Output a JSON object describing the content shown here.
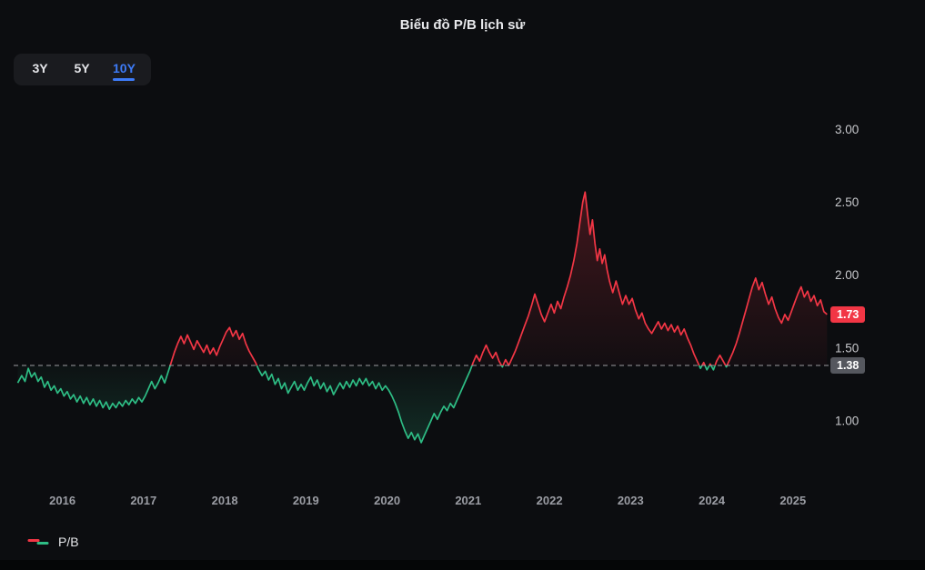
{
  "header": {
    "title": "Biểu đồ P/B lịch sử"
  },
  "range_selector": {
    "selected": "10Y",
    "options": [
      {
        "id": "3Y",
        "label": "3Y"
      },
      {
        "id": "5Y",
        "label": "5Y"
      },
      {
        "id": "10Y",
        "label": "10Y"
      }
    ]
  },
  "legend": {
    "label": "P/B"
  },
  "chart_data": {
    "type": "line",
    "title": "Biểu đồ P/B lịch sử",
    "xlabel": "",
    "ylabel": "P/B",
    "grid": false,
    "legend_position": "bottom-left",
    "x_range": [
      2015.4,
      2025.45
    ],
    "y_range": [
      0.55,
      3.14
    ],
    "x_ticks": [
      {
        "v": 2016,
        "label": "2016"
      },
      {
        "v": 2017,
        "label": "2017"
      },
      {
        "v": 2018,
        "label": "2018"
      },
      {
        "v": 2019,
        "label": "2019"
      },
      {
        "v": 2020,
        "label": "2020"
      },
      {
        "v": 2021,
        "label": "2021"
      },
      {
        "v": 2022,
        "label": "2022"
      },
      {
        "v": 2023,
        "label": "2023"
      },
      {
        "v": 2024,
        "label": "2024"
      },
      {
        "v": 2025,
        "label": "2025"
      }
    ],
    "y_ticks": [
      {
        "v": 1.0,
        "label": "1.00"
      },
      {
        "v": 1.5,
        "label": "1.50"
      },
      {
        "v": 2.0,
        "label": "2.00"
      },
      {
        "v": 2.5,
        "label": "2.50"
      },
      {
        "v": 3.0,
        "label": "3.00"
      }
    ],
    "threshold": {
      "value": 1.38,
      "label": "1.38"
    },
    "current": {
      "value": 1.73,
      "label": "1.73"
    },
    "colors": {
      "above": "#f23645",
      "below": "#2ebd85",
      "accent_blue": "#3d7bf7",
      "threshold_line": "#9b9ca1",
      "current_badge_bg": "#f23645",
      "threshold_badge_bg": "#55575e",
      "y_tick_text": "#c8c9cd",
      "x_tick_text": "#9a9ca3"
    },
    "series": [
      {
        "name": "P/B",
        "points": [
          [
            2015.45,
            1.26
          ],
          [
            2015.5,
            1.31
          ],
          [
            2015.54,
            1.27
          ],
          [
            2015.58,
            1.36
          ],
          [
            2015.62,
            1.3
          ],
          [
            2015.66,
            1.33
          ],
          [
            2015.7,
            1.27
          ],
          [
            2015.74,
            1.3
          ],
          [
            2015.78,
            1.23
          ],
          [
            2015.82,
            1.27
          ],
          [
            2015.86,
            1.21
          ],
          [
            2015.9,
            1.24
          ],
          [
            2015.94,
            1.19
          ],
          [
            2015.98,
            1.22
          ],
          [
            2016.02,
            1.17
          ],
          [
            2016.06,
            1.2
          ],
          [
            2016.1,
            1.15
          ],
          [
            2016.14,
            1.18
          ],
          [
            2016.18,
            1.13
          ],
          [
            2016.22,
            1.17
          ],
          [
            2016.26,
            1.12
          ],
          [
            2016.3,
            1.16
          ],
          [
            2016.34,
            1.11
          ],
          [
            2016.38,
            1.15
          ],
          [
            2016.42,
            1.1
          ],
          [
            2016.46,
            1.14
          ],
          [
            2016.5,
            1.09
          ],
          [
            2016.54,
            1.13
          ],
          [
            2016.58,
            1.08
          ],
          [
            2016.62,
            1.12
          ],
          [
            2016.66,
            1.09
          ],
          [
            2016.7,
            1.13
          ],
          [
            2016.74,
            1.1
          ],
          [
            2016.78,
            1.14
          ],
          [
            2016.82,
            1.11
          ],
          [
            2016.86,
            1.15
          ],
          [
            2016.9,
            1.12
          ],
          [
            2016.94,
            1.16
          ],
          [
            2016.98,
            1.13
          ],
          [
            2017.02,
            1.17
          ],
          [
            2017.06,
            1.22
          ],
          [
            2017.1,
            1.27
          ],
          [
            2017.14,
            1.22
          ],
          [
            2017.18,
            1.26
          ],
          [
            2017.22,
            1.31
          ],
          [
            2017.26,
            1.26
          ],
          [
            2017.3,
            1.33
          ],
          [
            2017.34,
            1.4
          ],
          [
            2017.38,
            1.47
          ],
          [
            2017.42,
            1.53
          ],
          [
            2017.46,
            1.58
          ],
          [
            2017.5,
            1.53
          ],
          [
            2017.54,
            1.59
          ],
          [
            2017.58,
            1.54
          ],
          [
            2017.62,
            1.49
          ],
          [
            2017.66,
            1.55
          ],
          [
            2017.7,
            1.51
          ],
          [
            2017.74,
            1.47
          ],
          [
            2017.78,
            1.52
          ],
          [
            2017.82,
            1.46
          ],
          [
            2017.86,
            1.5
          ],
          [
            2017.9,
            1.45
          ],
          [
            2017.94,
            1.51
          ],
          [
            2017.98,
            1.56
          ],
          [
            2018.02,
            1.61
          ],
          [
            2018.06,
            1.64
          ],
          [
            2018.1,
            1.58
          ],
          [
            2018.14,
            1.62
          ],
          [
            2018.18,
            1.56
          ],
          [
            2018.22,
            1.6
          ],
          [
            2018.26,
            1.53
          ],
          [
            2018.3,
            1.48
          ],
          [
            2018.34,
            1.44
          ],
          [
            2018.38,
            1.4
          ],
          [
            2018.42,
            1.35
          ],
          [
            2018.46,
            1.31
          ],
          [
            2018.5,
            1.34
          ],
          [
            2018.54,
            1.28
          ],
          [
            2018.58,
            1.32
          ],
          [
            2018.62,
            1.25
          ],
          [
            2018.66,
            1.29
          ],
          [
            2018.7,
            1.22
          ],
          [
            2018.74,
            1.26
          ],
          [
            2018.78,
            1.19
          ],
          [
            2018.82,
            1.23
          ],
          [
            2018.86,
            1.27
          ],
          [
            2018.9,
            1.21
          ],
          [
            2018.94,
            1.25
          ],
          [
            2018.98,
            1.21
          ],
          [
            2019.02,
            1.26
          ],
          [
            2019.06,
            1.3
          ],
          [
            2019.1,
            1.24
          ],
          [
            2019.14,
            1.28
          ],
          [
            2019.18,
            1.22
          ],
          [
            2019.22,
            1.26
          ],
          [
            2019.26,
            1.2
          ],
          [
            2019.3,
            1.24
          ],
          [
            2019.34,
            1.18
          ],
          [
            2019.38,
            1.22
          ],
          [
            2019.42,
            1.26
          ],
          [
            2019.46,
            1.22
          ],
          [
            2019.5,
            1.27
          ],
          [
            2019.54,
            1.23
          ],
          [
            2019.58,
            1.28
          ],
          [
            2019.62,
            1.24
          ],
          [
            2019.66,
            1.29
          ],
          [
            2019.7,
            1.25
          ],
          [
            2019.74,
            1.29
          ],
          [
            2019.78,
            1.24
          ],
          [
            2019.82,
            1.27
          ],
          [
            2019.86,
            1.22
          ],
          [
            2019.9,
            1.26
          ],
          [
            2019.94,
            1.21
          ],
          [
            2019.98,
            1.24
          ],
          [
            2020.02,
            1.21
          ],
          [
            2020.06,
            1.17
          ],
          [
            2020.1,
            1.12
          ],
          [
            2020.14,
            1.06
          ],
          [
            2020.18,
            0.99
          ],
          [
            2020.22,
            0.93
          ],
          [
            2020.26,
            0.88
          ],
          [
            2020.3,
            0.92
          ],
          [
            2020.34,
            0.87
          ],
          [
            2020.38,
            0.91
          ],
          [
            2020.42,
            0.85
          ],
          [
            2020.46,
            0.9
          ],
          [
            2020.5,
            0.95
          ],
          [
            2020.54,
            1.0
          ],
          [
            2020.58,
            1.05
          ],
          [
            2020.62,
            1.01
          ],
          [
            2020.66,
            1.06
          ],
          [
            2020.7,
            1.1
          ],
          [
            2020.74,
            1.07
          ],
          [
            2020.78,
            1.12
          ],
          [
            2020.82,
            1.09
          ],
          [
            2020.86,
            1.14
          ],
          [
            2020.9,
            1.19
          ],
          [
            2020.94,
            1.24
          ],
          [
            2020.98,
            1.29
          ],
          [
            2021.02,
            1.34
          ],
          [
            2021.06,
            1.4
          ],
          [
            2021.1,
            1.45
          ],
          [
            2021.14,
            1.41
          ],
          [
            2021.18,
            1.47
          ],
          [
            2021.22,
            1.52
          ],
          [
            2021.26,
            1.47
          ],
          [
            2021.3,
            1.43
          ],
          [
            2021.34,
            1.47
          ],
          [
            2021.38,
            1.41
          ],
          [
            2021.42,
            1.37
          ],
          [
            2021.46,
            1.42
          ],
          [
            2021.5,
            1.38
          ],
          [
            2021.54,
            1.43
          ],
          [
            2021.58,
            1.48
          ],
          [
            2021.62,
            1.54
          ],
          [
            2021.66,
            1.6
          ],
          [
            2021.7,
            1.66
          ],
          [
            2021.74,
            1.72
          ],
          [
            2021.78,
            1.79
          ],
          [
            2021.82,
            1.87
          ],
          [
            2021.86,
            1.8
          ],
          [
            2021.9,
            1.73
          ],
          [
            2021.94,
            1.68
          ],
          [
            2021.98,
            1.74
          ],
          [
            2022.02,
            1.8
          ],
          [
            2022.06,
            1.74
          ],
          [
            2022.1,
            1.82
          ],
          [
            2022.14,
            1.77
          ],
          [
            2022.18,
            1.85
          ],
          [
            2022.22,
            1.92
          ],
          [
            2022.26,
            2.0
          ],
          [
            2022.3,
            2.1
          ],
          [
            2022.34,
            2.22
          ],
          [
            2022.38,
            2.38
          ],
          [
            2022.41,
            2.5
          ],
          [
            2022.44,
            2.57
          ],
          [
            2022.47,
            2.42
          ],
          [
            2022.5,
            2.28
          ],
          [
            2022.53,
            2.38
          ],
          [
            2022.56,
            2.22
          ],
          [
            2022.59,
            2.1
          ],
          [
            2022.62,
            2.18
          ],
          [
            2022.65,
            2.08
          ],
          [
            2022.68,
            2.14
          ],
          [
            2022.71,
            2.04
          ],
          [
            2022.74,
            1.96
          ],
          [
            2022.78,
            1.88
          ],
          [
            2022.82,
            1.96
          ],
          [
            2022.86,
            1.88
          ],
          [
            2022.9,
            1.8
          ],
          [
            2022.94,
            1.86
          ],
          [
            2022.98,
            1.8
          ],
          [
            2023.02,
            1.84
          ],
          [
            2023.06,
            1.76
          ],
          [
            2023.1,
            1.7
          ],
          [
            2023.14,
            1.74
          ],
          [
            2023.18,
            1.67
          ],
          [
            2023.22,
            1.63
          ],
          [
            2023.26,
            1.6
          ],
          [
            2023.3,
            1.64
          ],
          [
            2023.34,
            1.68
          ],
          [
            2023.38,
            1.63
          ],
          [
            2023.42,
            1.67
          ],
          [
            2023.46,
            1.62
          ],
          [
            2023.5,
            1.66
          ],
          [
            2023.54,
            1.61
          ],
          [
            2023.58,
            1.65
          ],
          [
            2023.62,
            1.59
          ],
          [
            2023.66,
            1.63
          ],
          [
            2023.7,
            1.57
          ],
          [
            2023.74,
            1.52
          ],
          [
            2023.78,
            1.46
          ],
          [
            2023.82,
            1.41
          ],
          [
            2023.86,
            1.36
          ],
          [
            2023.9,
            1.4
          ],
          [
            2023.94,
            1.35
          ],
          [
            2023.98,
            1.39
          ],
          [
            2024.02,
            1.35
          ],
          [
            2024.06,
            1.41
          ],
          [
            2024.1,
            1.45
          ],
          [
            2024.14,
            1.41
          ],
          [
            2024.18,
            1.37
          ],
          [
            2024.22,
            1.42
          ],
          [
            2024.26,
            1.47
          ],
          [
            2024.3,
            1.53
          ],
          [
            2024.34,
            1.6
          ],
          [
            2024.38,
            1.68
          ],
          [
            2024.42,
            1.76
          ],
          [
            2024.46,
            1.84
          ],
          [
            2024.5,
            1.92
          ],
          [
            2024.54,
            1.98
          ],
          [
            2024.58,
            1.9
          ],
          [
            2024.62,
            1.95
          ],
          [
            2024.66,
            1.87
          ],
          [
            2024.7,
            1.8
          ],
          [
            2024.74,
            1.85
          ],
          [
            2024.78,
            1.77
          ],
          [
            2024.82,
            1.71
          ],
          [
            2024.86,
            1.67
          ],
          [
            2024.9,
            1.73
          ],
          [
            2024.94,
            1.69
          ],
          [
            2024.98,
            1.75
          ],
          [
            2025.02,
            1.81
          ],
          [
            2025.06,
            1.87
          ],
          [
            2025.1,
            1.92
          ],
          [
            2025.14,
            1.85
          ],
          [
            2025.18,
            1.89
          ],
          [
            2025.22,
            1.82
          ],
          [
            2025.26,
            1.86
          ],
          [
            2025.3,
            1.79
          ],
          [
            2025.34,
            1.83
          ],
          [
            2025.38,
            1.75
          ],
          [
            2025.42,
            1.73
          ]
        ]
      }
    ]
  }
}
